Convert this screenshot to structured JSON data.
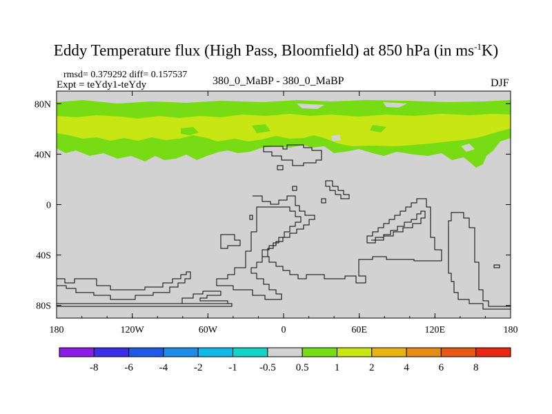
{
  "figure": {
    "title_main": "Eddy Temperature flux (High Pass, Bloomfield) at 850 hPa (in ms",
    "title_sup": "-1",
    "title_end": "K)",
    "stats": "rmsd= 0.379292  diff= 0.157537",
    "expt": "Expt = teYdy1-teYdy",
    "center_label": "380_0_MaBP - 380_0_MaBP",
    "season": "DJF"
  },
  "chart_data": {
    "type": "heatmap",
    "title": "Eddy Temperature flux (High Pass, Bloomfield) at 850 hPa (in ms-1K)",
    "subtitle": "380_0_MaBP - 380_0_MaBP",
    "x_ticks": [
      "180",
      "120W",
      "60W",
      "0",
      "60E",
      "120E",
      "180"
    ],
    "y_ticks": [
      "80N",
      "40N",
      "0",
      "40S",
      "80S"
    ],
    "x_range": [
      -180,
      180
    ],
    "y_range": [
      -90,
      90
    ],
    "colorbar": {
      "labels": [
        "-8",
        "-6",
        "-4",
        "-2",
        "-1",
        "-0.5",
        "0.5",
        "1",
        "2",
        "4",
        "6",
        "8"
      ],
      "colors": [
        "#8a1ee6",
        "#3c2ee6",
        "#1e5ae6",
        "#1e8ce6",
        "#12b9e6",
        "#14d2c8",
        "#d2d2d2",
        "#78dc14",
        "#c8e614",
        "#e6b414",
        "#e68c14",
        "#e65a14",
        "#e62814"
      ]
    },
    "regions": [
      {
        "name": "northern-band-1-to-2",
        "lat_range": [
          40,
          82
        ],
        "value_class": "1 to 2",
        "color": "#78dc14"
      },
      {
        "name": "northern-core-2-to-4",
        "lat_range": [
          50,
          72
        ],
        "value_class": "2 to 4",
        "color": "#c8e614"
      },
      {
        "name": "background",
        "value_class": "-0.5 to 0.5",
        "color": "#d2d2d2"
      }
    ]
  }
}
